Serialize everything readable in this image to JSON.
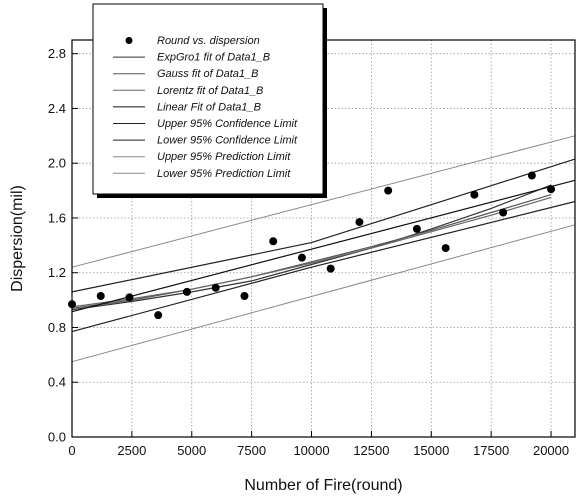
{
  "chart_data": {
    "type": "scatter",
    "title": "",
    "xlabel": "Number of Fire(round)",
    "ylabel": "Dispersion(mil)",
    "xlim": [
      0,
      21000
    ],
    "ylim": [
      0.0,
      2.9
    ],
    "xticks": [
      0,
      2500,
      5000,
      7500,
      10000,
      12500,
      15000,
      17500,
      20000
    ],
    "yticks": [
      0.0,
      0.4,
      0.8,
      1.2,
      1.6,
      2.0,
      2.4,
      2.8
    ],
    "ytick_labels": [
      "0.0",
      "0.4",
      "0.8",
      "1.2",
      "1.6",
      "2.0",
      "2.4",
      "2.8"
    ],
    "grid": true,
    "legend_position": "top-left",
    "series": [
      {
        "name": "Round vs. dispersion",
        "kind": "points",
        "color": "#000000",
        "x": [
          0,
          1200,
          2400,
          3600,
          4800,
          6000,
          7200,
          8400,
          9600,
          10800,
          12000,
          13200,
          14400,
          15600,
          16800,
          18000,
          19200,
          20000
        ],
        "y": [
          0.97,
          1.03,
          1.02,
          0.89,
          1.06,
          1.09,
          1.03,
          1.43,
          1.31,
          1.23,
          1.57,
          1.8,
          1.52,
          1.38,
          1.77,
          1.64,
          1.91,
          1.81
        ]
      },
      {
        "name": "ExpGro1 fit of Data1_B",
        "kind": "line",
        "color": "#333333",
        "x": [
          0,
          2500,
          5000,
          7500,
          10000,
          12500,
          15000,
          17500,
          20000
        ],
        "y": [
          0.93,
          0.99,
          1.06,
          1.14,
          1.26,
          1.38,
          1.52,
          1.67,
          1.84
        ]
      },
      {
        "name": "Gauss fit of Data1_B",
        "kind": "line",
        "color": "#555555",
        "x": [
          0,
          2500,
          5000,
          7500,
          10000,
          12500,
          15000,
          17500,
          20000
        ],
        "y": [
          0.94,
          1.0,
          1.08,
          1.17,
          1.28,
          1.39,
          1.51,
          1.64,
          1.77
        ]
      },
      {
        "name": "Lorentz fit of Data1_B",
        "kind": "line",
        "color": "#666666",
        "x": [
          0,
          2500,
          5000,
          7500,
          10000,
          12500,
          15000,
          17500,
          20000
        ],
        "y": [
          0.95,
          1.01,
          1.08,
          1.17,
          1.27,
          1.38,
          1.5,
          1.62,
          1.75
        ]
      },
      {
        "name": "Linear Fit of Data1_B",
        "kind": "line",
        "color": "#111111",
        "x": [
          0,
          21000
        ],
        "y": [
          0.915,
          1.875
        ]
      },
      {
        "name": "Upper 95% Confidence Limit",
        "kind": "line",
        "color": "#222222",
        "x": [
          0,
          10000,
          21000
        ],
        "y": [
          1.06,
          1.42,
          2.03
        ]
      },
      {
        "name": "Lower 95% Confidence Limit",
        "kind": "line",
        "color": "#222222",
        "x": [
          0,
          10000,
          21000
        ],
        "y": [
          0.77,
          1.24,
          1.72
        ]
      },
      {
        "name": "Upper 95% Prediction Limit",
        "kind": "line",
        "color": "#888888",
        "x": [
          0,
          21000
        ],
        "y": [
          1.24,
          2.2
        ]
      },
      {
        "name": "Lower 95% Prediction Limit",
        "kind": "line",
        "color": "#888888",
        "x": [
          0,
          21000
        ],
        "y": [
          0.55,
          1.55
        ]
      }
    ]
  }
}
